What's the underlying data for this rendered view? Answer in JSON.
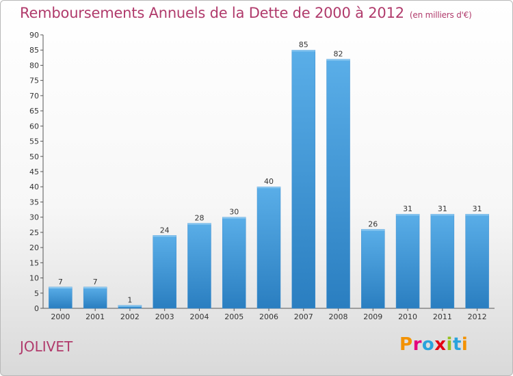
{
  "header": {
    "title": "Remboursements Annuels de la Dette de 2000 à 2012",
    "subtitle": "(en milliers d'€)"
  },
  "footer": {
    "commune": "JOLIVET",
    "logo": "Proxiti"
  },
  "colors": {
    "bar_top": "#5aaee8",
    "bar_bottom": "#2a7ec0",
    "title": "#b03a6b"
  },
  "chart_data": {
    "type": "bar",
    "title": "Remboursements Annuels de la Dette de 2000 à 2012",
    "subtitle": "(en milliers d'€)",
    "categories": [
      "2000",
      "2001",
      "2002",
      "2003",
      "2004",
      "2005",
      "2006",
      "2007",
      "2008",
      "2009",
      "2010",
      "2011",
      "2012"
    ],
    "values": [
      7,
      7,
      1,
      24,
      28,
      30,
      40,
      85,
      82,
      26,
      31,
      31,
      31
    ],
    "ylim": [
      0,
      90
    ],
    "yticks": [
      0,
      5,
      10,
      15,
      20,
      25,
      30,
      35,
      40,
      45,
      50,
      55,
      60,
      65,
      70,
      75,
      80,
      85,
      90
    ],
    "grid": false
  }
}
